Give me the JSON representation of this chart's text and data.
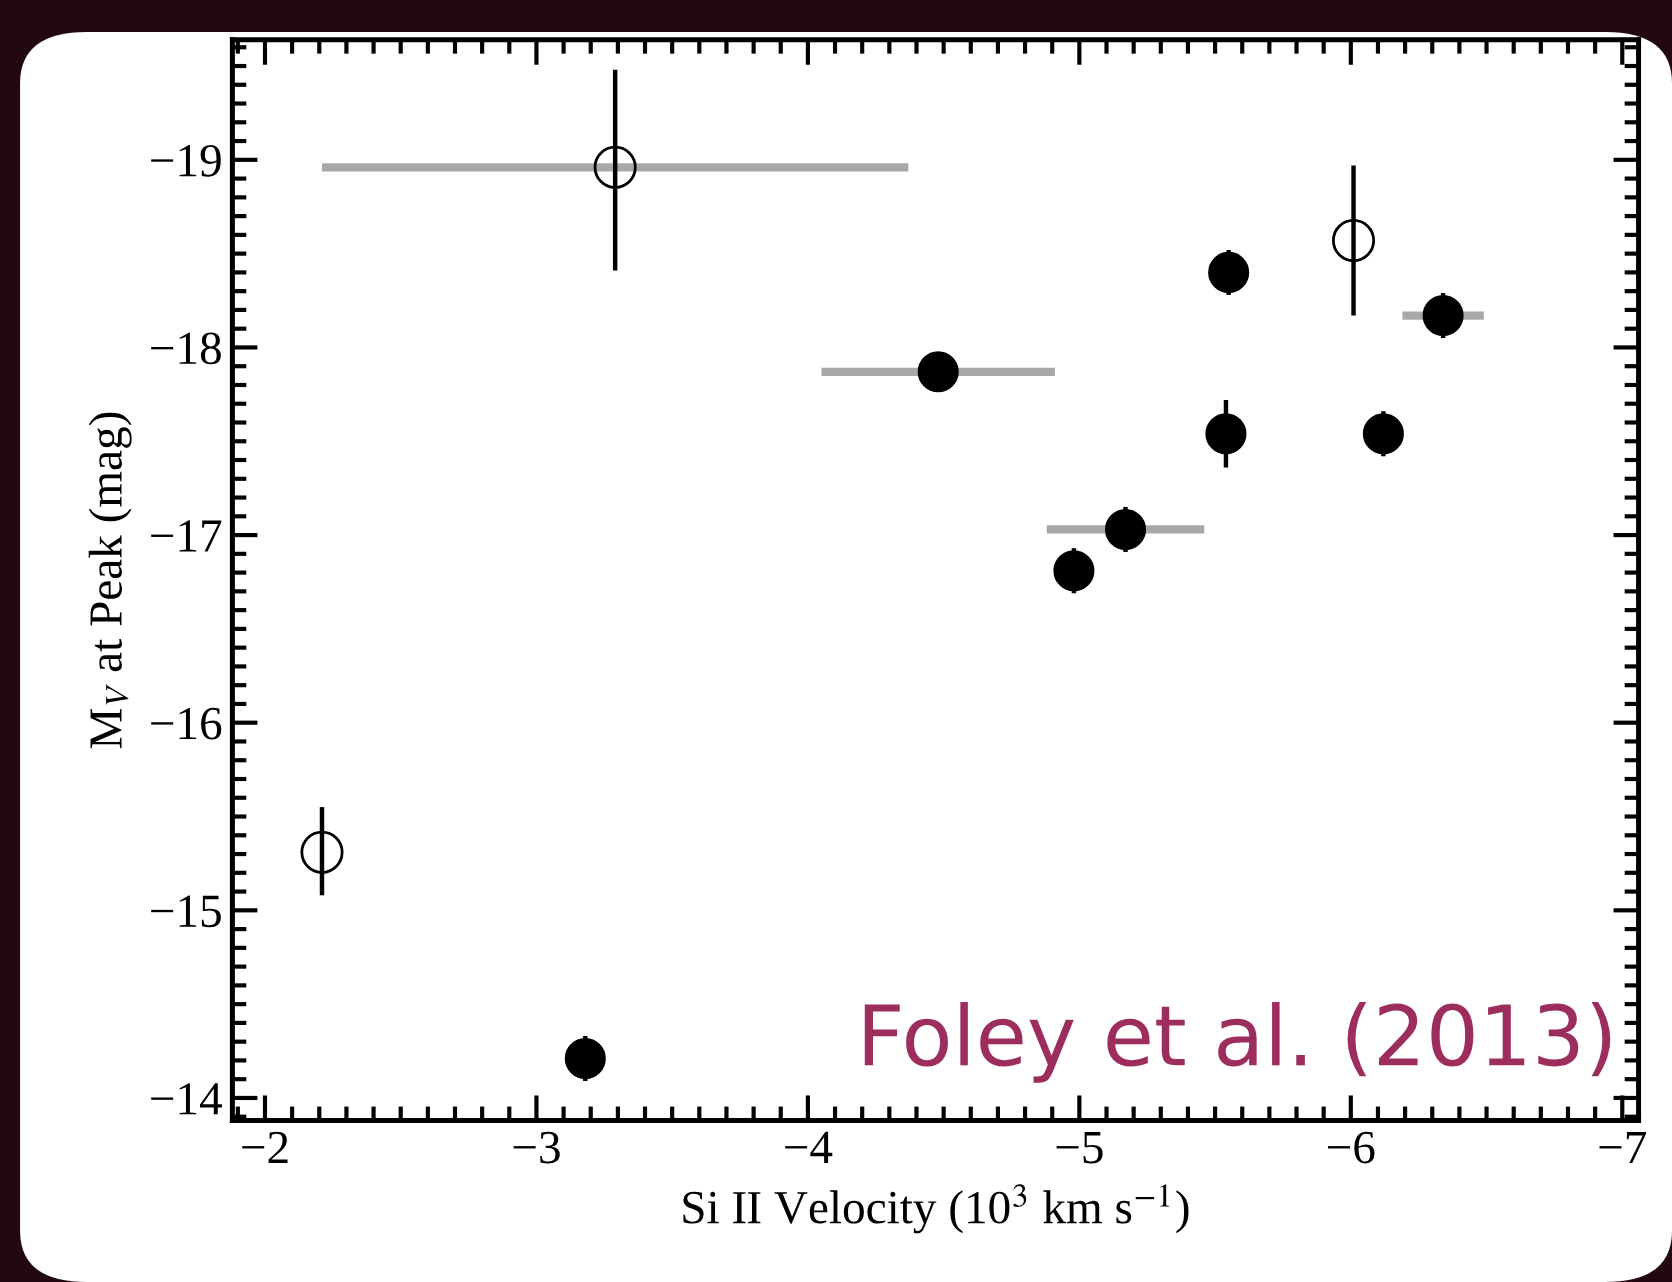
{
  "chart_data": {
    "type": "scatter",
    "xlabel": "Si II Velocity (10$^{3}$ km s$^{−1}$)",
    "ylabel": "M$_{V}$ at Peak (mag)",
    "annotations": [
      "Foley et al. (2013)"
    ],
    "series": [
      {
        "color": "#000000",
        "marker": "circle",
        "x": [
          -4.48,
          -5.55,
          -6.34,
          -5.54,
          -6.12,
          -5.17,
          -4.98,
          -3.18
        ],
        "values": [
          -17.87,
          -18.4,
          -18.17,
          -17.54,
          -17.54,
          -17.03,
          -16.81,
          -14.21
        ],
        "errors": [
          0.1,
          0.12,
          0.12,
          0.18,
          0.12,
          0.12,
          0.12,
          0.12
        ],
        "xerrors": [
          [
            -4.05,
            -4.91
          ],
          null,
          [
            -6.19,
            -6.49
          ],
          null,
          null,
          [
            -4.88,
            -5.46
          ],
          null,
          null
        ]
      },
      {
        "color": "#000000",
        "marker": "circle",
        "x": [
          -3.29,
          -6.01,
          -2.21
        ],
        "values": [
          -18.96,
          -18.57,
          -15.31
        ],
        "errors": [
          [
            -19.48,
            -18.41
          ],
          [
            -18.97,
            -18.17
          ],
          [
            -15.55,
            -15.08
          ]
        ],
        "xerrors": [
          [
            -2.21,
            -4.37
          ],
          null,
          null
        ]
      }
    ],
    "xlim": [
      -1.88,
      -7.06
    ],
    "ylim": [
      -13.88,
      -19.64
    ],
    "xticks": [
      {
        "value": -2,
        "label": "−2"
      },
      {
        "value": -3,
        "label": "−3"
      },
      {
        "value": -4,
        "label": "−4"
      },
      {
        "value": -5,
        "label": "−5"
      },
      {
        "value": -6,
        "label": "−6"
      },
      {
        "value": -7,
        "label": "−7"
      }
    ],
    "yticks": [
      {
        "value": -14,
        "label": "−14"
      },
      {
        "value": -15,
        "label": "−15"
      },
      {
        "value": -16,
        "label": "−16"
      },
      {
        "value": -17,
        "label": "−17"
      },
      {
        "value": -18,
        "label": "−18"
      },
      {
        "value": -19,
        "label": "−19"
      }
    ]
  }
}
